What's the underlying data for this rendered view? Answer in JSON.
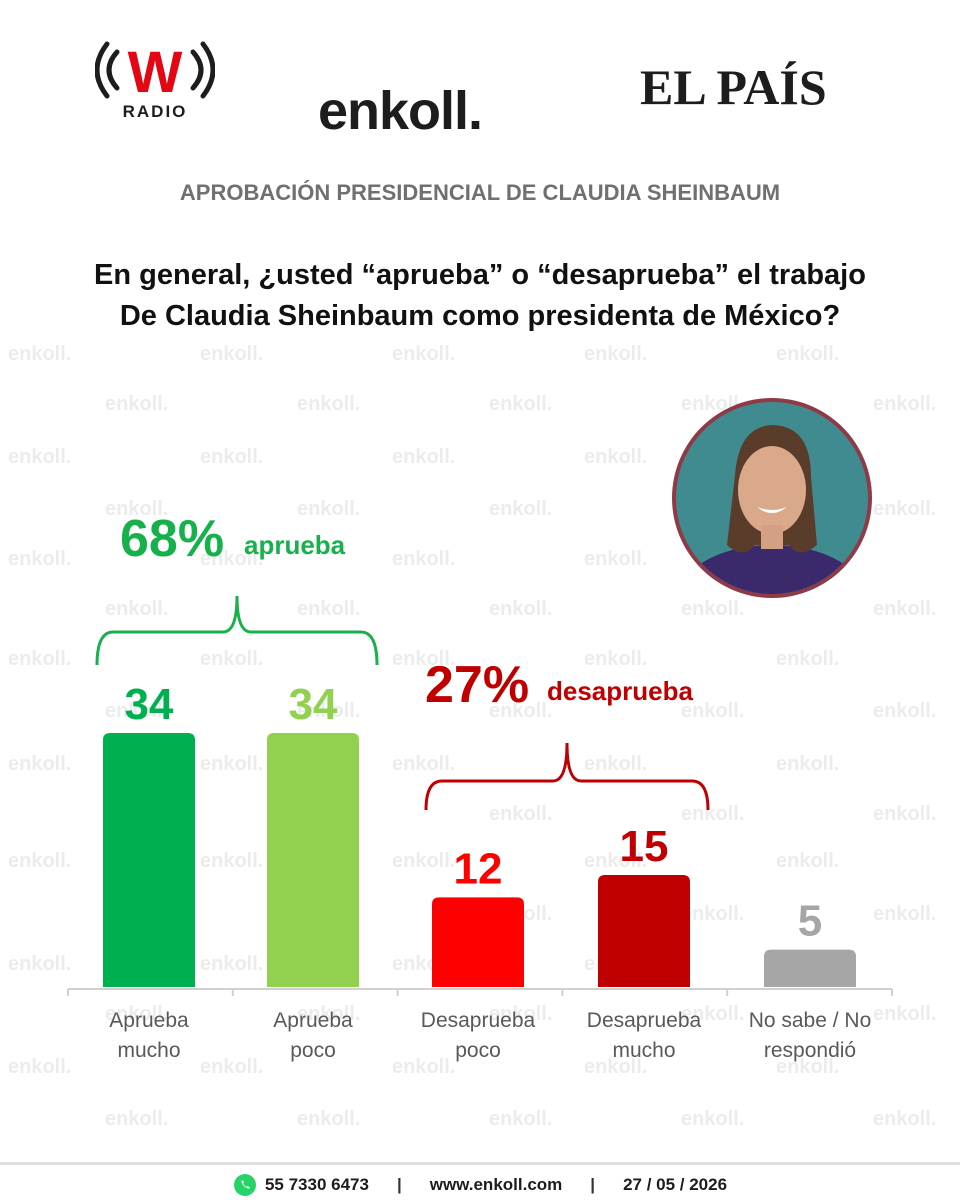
{
  "logos": {
    "wradio_letter": "W",
    "wradio_text": "RADIO",
    "enkoll": "enkoll.",
    "elpais": "EL PAÍS"
  },
  "header": {
    "subtitle": "APROBACIÓN PRESIDENCIAL DE CLAUDIA SHEINBAUM",
    "question_line1": "En general, ¿usted “aprueba” o “desaprueba” el trabajo",
    "question_line2": "De Claudia Sheinbaum como presidenta de México?"
  },
  "watermark_text": "enkoll.",
  "chart_data": {
    "type": "bar",
    "categories": [
      "Aprueba mucho",
      "Aprueba poco",
      "Desaprueba poco",
      "Desaprueba mucho",
      "No sabe / No respondió"
    ],
    "category_lines": [
      [
        "Aprueba",
        "mucho"
      ],
      [
        "Aprueba",
        "poco"
      ],
      [
        "Desaprueba",
        "poco"
      ],
      [
        "Desaprueba",
        "mucho"
      ],
      [
        "No sabe / No",
        "respondió"
      ]
    ],
    "values": [
      34,
      34,
      12,
      15,
      5
    ],
    "value_labels": [
      "34",
      "34",
      "12",
      "15",
      "5"
    ],
    "colors": [
      "#00b050",
      "#92d050",
      "#ff0000",
      "#c00000",
      "#a6a6a6"
    ],
    "ylim": [
      0,
      34
    ],
    "groups": [
      {
        "value": "68%",
        "label": "aprueba",
        "color": "#16b14b",
        "from": 0,
        "to": 1
      },
      {
        "value": "27%",
        "label": "desaprueba",
        "color": "#c00000",
        "from": 2,
        "to": 3
      }
    ]
  },
  "footer": {
    "phone": "55 7330 6473",
    "separator": "|",
    "website": "www.enkoll.com",
    "date": "27 / 05 / 2026",
    "whatsapp_color": "#25d366"
  }
}
